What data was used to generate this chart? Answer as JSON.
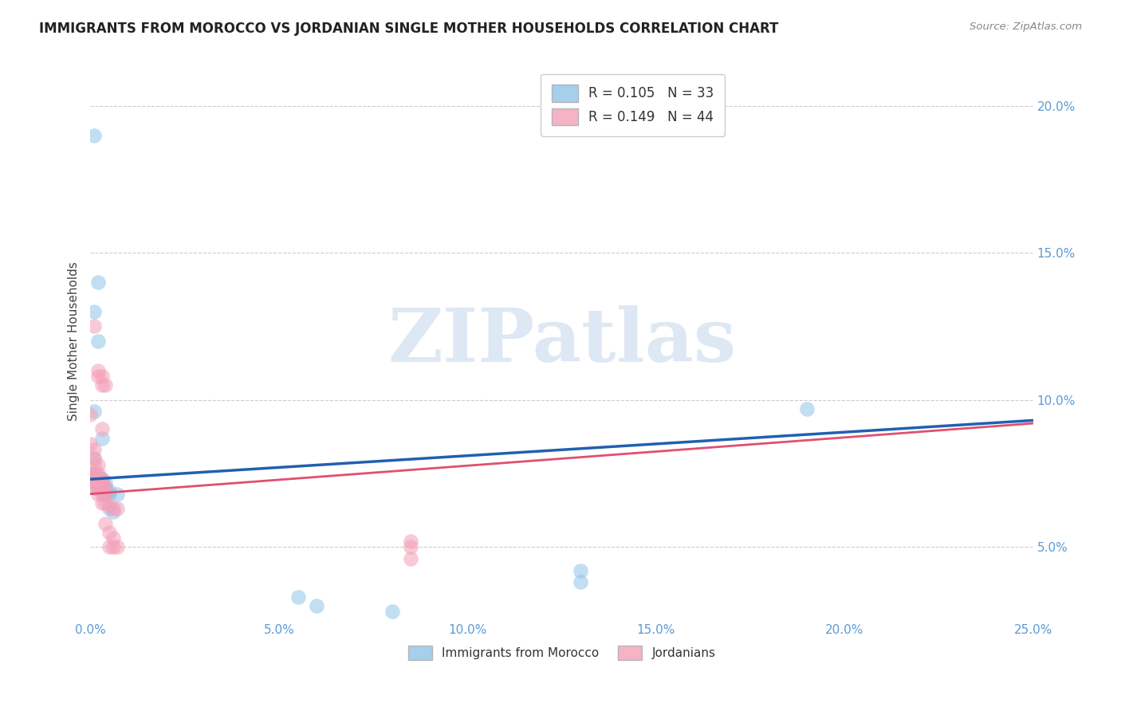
{
  "title": "IMMIGRANTS FROM MOROCCO VS JORDANIAN SINGLE MOTHER HOUSEHOLDS CORRELATION CHART",
  "source": "Source: ZipAtlas.com",
  "ylabel": "Single Mother Households",
  "xlim": [
    0.0,
    0.25
  ],
  "ylim": [
    0.025,
    0.215
  ],
  "xticks": [
    0.0,
    0.05,
    0.1,
    0.15,
    0.2,
    0.25
  ],
  "yticks": [
    0.05,
    0.1,
    0.15,
    0.2
  ],
  "ytick_labels": [
    "5.0%",
    "10.0%",
    "15.0%",
    "20.0%"
  ],
  "xtick_labels": [
    "0.0%",
    "5.0%",
    "10.0%",
    "15.0%",
    "20.0%",
    "25.0%"
  ],
  "watermark_text": "ZIPatlas",
  "blue_color": "#90c4e8",
  "pink_color": "#f4a0b8",
  "line_blue_color": "#2060b0",
  "line_pink_color": "#e05070",
  "morocco_line_x": [
    0.0,
    0.25
  ],
  "morocco_line_y": [
    0.073,
    0.093
  ],
  "jordan_line_x": [
    0.0,
    0.25
  ],
  "jordan_line_y": [
    0.068,
    0.092
  ],
  "morocco_points": [
    [
      0.001,
      0.19
    ],
    [
      0.002,
      0.14
    ],
    [
      0.001,
      0.13
    ],
    [
      0.002,
      0.12
    ],
    [
      0.001,
      0.096
    ],
    [
      0.003,
      0.087
    ],
    [
      0.001,
      0.08
    ],
    [
      0.0,
      0.075
    ],
    [
      0.001,
      0.075
    ],
    [
      0.001,
      0.074
    ],
    [
      0.002,
      0.074
    ],
    [
      0.001,
      0.073
    ],
    [
      0.002,
      0.073
    ],
    [
      0.003,
      0.073
    ],
    [
      0.001,
      0.072
    ],
    [
      0.002,
      0.072
    ],
    [
      0.003,
      0.072
    ],
    [
      0.004,
      0.072
    ],
    [
      0.002,
      0.071
    ],
    [
      0.003,
      0.071
    ],
    [
      0.001,
      0.07
    ],
    [
      0.002,
      0.07
    ],
    [
      0.003,
      0.07
    ],
    [
      0.004,
      0.07
    ],
    [
      0.003,
      0.069
    ],
    [
      0.004,
      0.069
    ],
    [
      0.005,
      0.069
    ],
    [
      0.004,
      0.068
    ],
    [
      0.005,
      0.068
    ],
    [
      0.007,
      0.068
    ],
    [
      0.005,
      0.063
    ],
    [
      0.006,
      0.062
    ],
    [
      0.19,
      0.097
    ],
    [
      0.13,
      0.042
    ],
    [
      0.13,
      0.038
    ],
    [
      0.055,
      0.033
    ],
    [
      0.06,
      0.03
    ],
    [
      0.08,
      0.028
    ]
  ],
  "jordan_points": [
    [
      0.0,
      0.095
    ],
    [
      0.001,
      0.125
    ],
    [
      0.002,
      0.11
    ],
    [
      0.002,
      0.108
    ],
    [
      0.003,
      0.108
    ],
    [
      0.003,
      0.105
    ],
    [
      0.004,
      0.105
    ],
    [
      0.003,
      0.09
    ],
    [
      0.0,
      0.085
    ],
    [
      0.001,
      0.083
    ],
    [
      0.001,
      0.08
    ],
    [
      0.001,
      0.078
    ],
    [
      0.002,
      0.078
    ],
    [
      0.001,
      0.075
    ],
    [
      0.002,
      0.075
    ],
    [
      0.0,
      0.074
    ],
    [
      0.001,
      0.073
    ],
    [
      0.002,
      0.073
    ],
    [
      0.003,
      0.073
    ],
    [
      0.001,
      0.072
    ],
    [
      0.002,
      0.072
    ],
    [
      0.003,
      0.072
    ],
    [
      0.001,
      0.071
    ],
    [
      0.002,
      0.071
    ],
    [
      0.002,
      0.07
    ],
    [
      0.003,
      0.07
    ],
    [
      0.004,
      0.07
    ],
    [
      0.002,
      0.068
    ],
    [
      0.003,
      0.068
    ],
    [
      0.004,
      0.068
    ],
    [
      0.003,
      0.065
    ],
    [
      0.004,
      0.065
    ],
    [
      0.005,
      0.064
    ],
    [
      0.006,
      0.063
    ],
    [
      0.007,
      0.063
    ],
    [
      0.004,
      0.058
    ],
    [
      0.005,
      0.055
    ],
    [
      0.006,
      0.053
    ],
    [
      0.005,
      0.05
    ],
    [
      0.006,
      0.05
    ],
    [
      0.007,
      0.05
    ],
    [
      0.085,
      0.052
    ],
    [
      0.085,
      0.05
    ],
    [
      0.085,
      0.046
    ]
  ]
}
